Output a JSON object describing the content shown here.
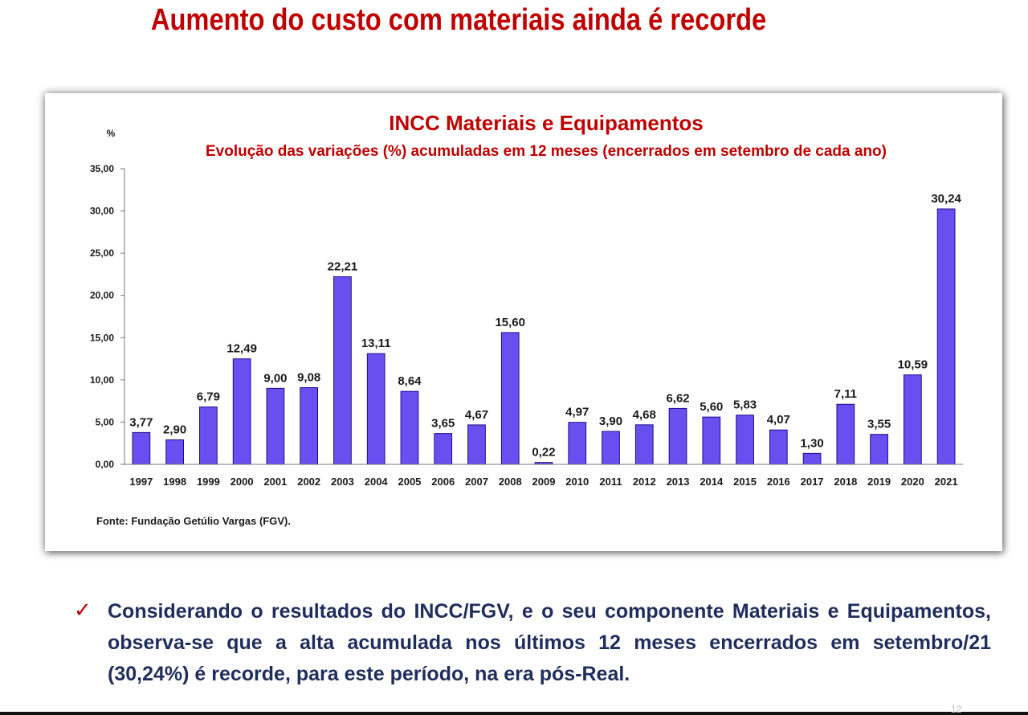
{
  "slide": {
    "title": "Aumento do custo com materiais ainda é recorde",
    "bullet_text": "Considerando o resultados do INCC/FGV, e o seu componente Materiais e Equipamentos, observa-se que a alta acumulada nos últimos 12 meses encerrados em setembro/21 (30,24%) é recorde, para este período, na era  pós-Real.",
    "check_icon": "checkmark-icon",
    "page_number": "12"
  },
  "colors": {
    "title_red": "#c00000",
    "bar_fill": "#6a4ff0",
    "bar_stroke": "#1c0c8a",
    "bullet_text": "#1f2d5c"
  },
  "chart_data": {
    "type": "bar",
    "title": "INCC Materiais e Equipamentos",
    "subtitle": "Evolução das variações (%) acumuladas em 12 meses (encerrados em setembro de cada ano)",
    "ylabel": "%",
    "xlabel": "",
    "ylim": [
      0,
      35
    ],
    "yticks": [
      "0,00",
      "5,00",
      "10,00",
      "15,00",
      "20,00",
      "25,00",
      "30,00",
      "35,00"
    ],
    "grid": false,
    "categories": [
      "1997",
      "1998",
      "1999",
      "2000",
      "2001",
      "2002",
      "2003",
      "2004",
      "2005",
      "2006",
      "2007",
      "2008",
      "2009",
      "2010",
      "2011",
      "2012",
      "2013",
      "2014",
      "2015",
      "2016",
      "2017",
      "2018",
      "2019",
      "2020",
      "2021"
    ],
    "values": [
      3.77,
      2.9,
      6.79,
      12.49,
      9.0,
      9.08,
      22.21,
      13.11,
      8.64,
      3.65,
      4.67,
      15.6,
      0.22,
      4.97,
      3.9,
      4.68,
      6.62,
      5.6,
      5.83,
      4.07,
      1.3,
      7.11,
      3.55,
      10.59,
      30.24
    ],
    "data_labels": [
      "3,77",
      "2,90",
      "6,79",
      "12,49",
      "9,00",
      "9,08",
      "22,21",
      "13,11",
      "8,64",
      "3,65",
      "4,67",
      "15,60",
      "0,22",
      "4,97",
      "3,90",
      "4,68",
      "6,62",
      "5,60",
      "5,83",
      "4,07",
      "1,30",
      "7,11",
      "3,55",
      "10,59",
      "30,24"
    ],
    "source": "Fonte: Fundação Getúlio Vargas (FGV)."
  }
}
